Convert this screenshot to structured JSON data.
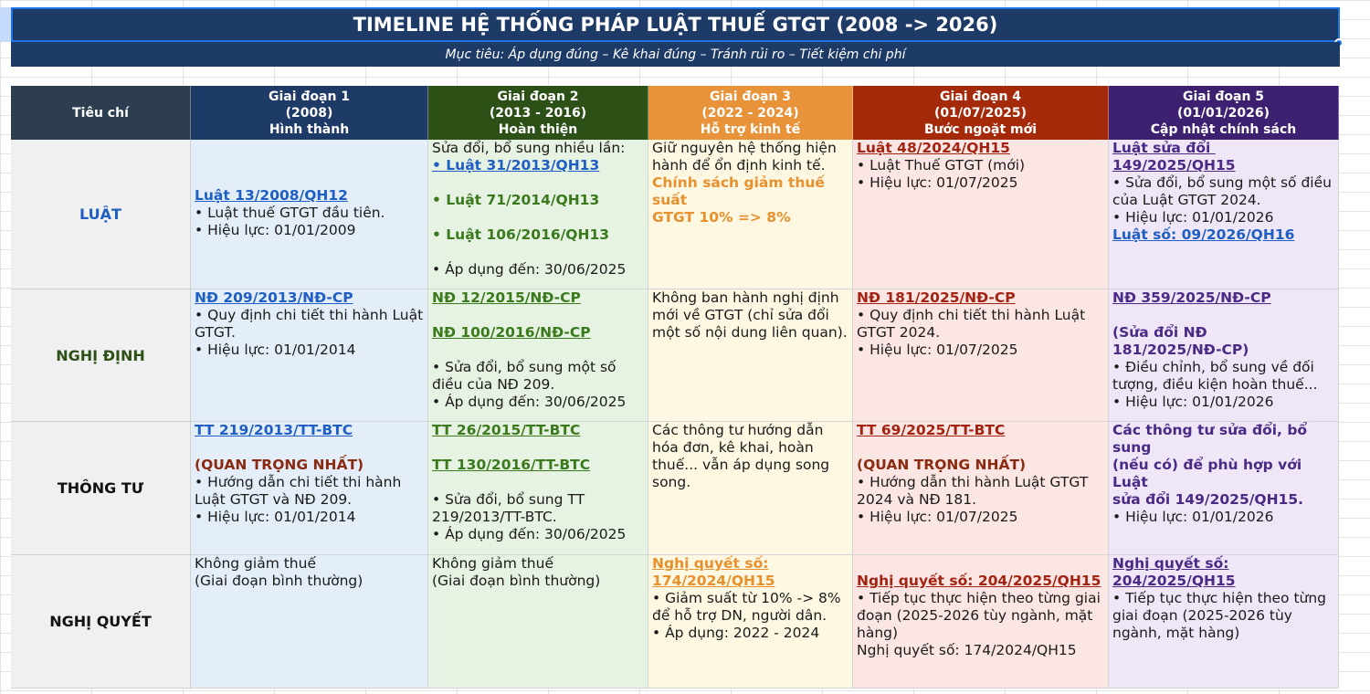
{
  "title": "TIMELINE HỆ THỐNG PHÁP LUẬT THUẾ GTGT (2008 -> 2026)",
  "subtitle": "Mục tiêu: Áp dụng đúng – Kê khai đúng – Tránh rủi ro – Tiết kiệm chi phí",
  "colors": {
    "title_bg": "#1e3a66",
    "header_criteria": "#2c3e50",
    "stage1": "#1e3a66",
    "stage2": "#2d5016",
    "stage3": "#e8933a",
    "stage4": "#a52a0a",
    "stage5": "#3d2170"
  },
  "header": {
    "criteria": "Tiêu chí",
    "stages": [
      {
        "l1": "Giai đoạn 1",
        "l2": "(2008)",
        "l3": "Hình thành"
      },
      {
        "l1": "Giai đoạn 2",
        "l2": "(2013 - 2016)",
        "l3": "Hoàn thiện"
      },
      {
        "l1": "Giai đoạn 3",
        "l2": "(2022 - 2024)",
        "l3": "Hỗ trợ kinh tế"
      },
      {
        "l1": "Giai đoạn 4",
        "l2": "(01/07/2025)",
        "l3": "Bước ngoặt mới"
      },
      {
        "l1": "Giai đoạn 5",
        "l2": "(01/01/2026)",
        "l3": "Cập nhật chính sách"
      }
    ]
  },
  "rows": {
    "luat": {
      "label": "LUẬT",
      "s1": {
        "law": "Luật 13/2008/QH12",
        "b1": "• Luật thuế GTGT đầu tiên.",
        "b2": "• Hiệu lực: 01/01/2009"
      },
      "s2": {
        "intro": "Sửa đổi, bổ sung nhiều lần:",
        "law1": "• Luật 31/2013/QH13",
        "law2": "• Luật 71/2014/QH13",
        "law3": "• Luật 106/2016/QH13",
        "b1": "• Áp dụng đến: 30/06/2025"
      },
      "s3": {
        "t1": "Giữ nguyên hệ thống hiện",
        "t2": "hành để ổn định kinh tế.",
        "hl1": "Chính sách giảm thuế suất",
        "hl2": "GTGT 10% => 8%"
      },
      "s4": {
        "law": "Luật 48/2024/QH15",
        "b1": "• Luật Thuế GTGT (mới)",
        "b2": "• Hiệu lực: 01/07/2025"
      },
      "s5": {
        "law": "Luật sửa đổi 149/2025/QH15",
        "b1": "• Sửa đổi, bổ sung một số điều",
        "b1b": "của Luật GTGT 2024.",
        "b2": "• Hiệu lực: 01/01/2026",
        "law2": "Luật số: 09/2026/QH16"
      }
    },
    "nghidinh": {
      "label": "NGHỊ ĐỊNH",
      "s1": {
        "law": "NĐ 209/2013/NĐ-CP",
        "b1": "• Quy định chi tiết thi hành Luật",
        "b1b": "GTGT.",
        "b2": "• Hiệu lực: 01/01/2014"
      },
      "s2": {
        "law1": "NĐ 12/2015/NĐ-CP",
        "law2": "NĐ 100/2016/NĐ-CP",
        "b1": "• Sửa đổi, bổ sung một số",
        "b1b": "điều của NĐ 209.",
        "b2": "• Áp dụng đến: 30/06/2025"
      },
      "s3": {
        "t1": "Không ban hành nghị định",
        "t2": "mới về GTGT (chỉ sửa đổi",
        "t3": "một số nội dung liên quan)."
      },
      "s4": {
        "law": "NĐ 181/2025/NĐ-CP",
        "b1": "• Quy định chi tiết thi hành Luật",
        "b1b": "GTGT 2024.",
        "b2": "• Hiệu lực: 01/07/2025"
      },
      "s5": {
        "law": "NĐ 359/2025/NĐ-CP",
        "p1": "(Sửa đổi NĐ",
        "p2": "181/2025/NĐ-CP)",
        "b1": "• Điều chỉnh, bổ sung về đối",
        "b1b": "tượng, điều kiện hoàn thuế...",
        "b2": "• Hiệu lực: 01/01/2026"
      }
    },
    "thongtu": {
      "label": "THÔNG TƯ",
      "s1": {
        "law": "TT 219/2013/TT-BTC",
        "note": "(QUAN TRỌNG NHẤT)",
        "b1": "• Hướng dẫn chi tiết thi hành",
        "b1b": "Luật GTGT và NĐ 209.",
        "b2": "• Hiệu lực: 01/01/2014"
      },
      "s2": {
        "law1": "TT 26/2015/TT-BTC",
        "law2": "TT 130/2016/TT-BTC",
        "b1": "• Sửa đổi, bổ sung TT",
        "b1b": "219/2013/TT-BTC.",
        "b2": "• Áp dụng đến: 30/06/2025"
      },
      "s3": {
        "t1": "Các thông tư hướng dẫn",
        "t2": "hóa đơn, kê khai, hoàn",
        "t3": "thuế... vẫn áp dụng song",
        "t4": "song."
      },
      "s4": {
        "law": "TT 69/2025/TT-BTC",
        "note": "(QUAN TRỌNG NHẤT)",
        "b1": "• Hướng dẫn thi hành Luật GTGT",
        "b1b": "2024 và NĐ 181.",
        "b2": "• Hiệu lực: 01/07/2025"
      },
      "s5": {
        "h1": "Các thông tư sửa đổi, bổ sung",
        "h2": "(nếu có) để phù hợp với Luật",
        "h3": "sửa đổi 149/2025/QH15.",
        "b2": "• Hiệu lực: 01/01/2026"
      }
    },
    "nghiquyet": {
      "label": "NGHỊ QUYẾT",
      "s1": {
        "t1": "Không giảm thuế",
        "t2": "(Giai đoạn bình thường)"
      },
      "s2": {
        "t1": "Không giảm thuế",
        "t2": "(Giai đoạn bình thường)"
      },
      "s3": {
        "law1": "Nghị quyết số:",
        "law2": "174/2024/QH15",
        "b1": "• Giảm suất từ 10% -> 8%",
        "b1b": "để hỗ trợ DN, người dân.",
        "b2": "• Áp dụng: 2022 - 2024"
      },
      "s4": {
        "law": "Nghị quyết số: 204/2025/QH15",
        "b1": "• Tiếp tục thực hiện theo từng giai",
        "b1b": "đoạn (2025-2026 tùy ngành, mặt",
        "b1c": "hàng)",
        "t1": "Nghị quyết số: 174/2024/QH15"
      },
      "s5": {
        "law1": "Nghị quyết số:",
        "law2": "204/2025/QH15",
        "b1": "• Tiếp tục thực hiện theo từng",
        "b1b": "giai đoạn (2025-2026 tùy",
        "b1c": "ngành, mặt hàng)"
      }
    }
  }
}
